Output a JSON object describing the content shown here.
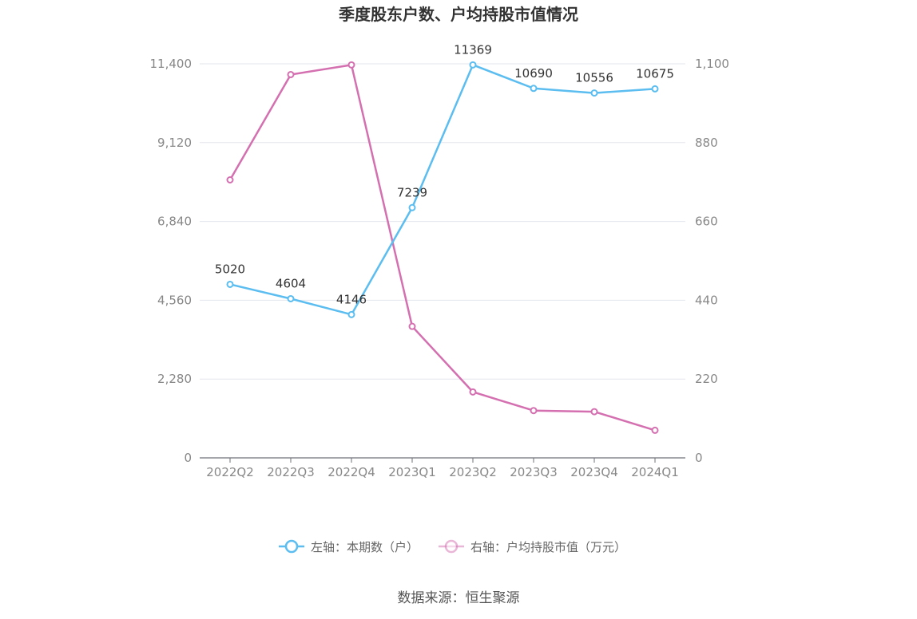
{
  "chart_data": {
    "type": "line",
    "title": "季度股东户数、户均持股市值情况",
    "categories": [
      "2022Q2",
      "2022Q3",
      "2022Q4",
      "2023Q1",
      "2023Q2",
      "2023Q3",
      "2023Q4",
      "2024Q1"
    ],
    "left_axis": {
      "ticks": [
        "0",
        "2,280",
        "4,560",
        "6,840",
        "9,120",
        "11,400"
      ],
      "ylim": [
        0,
        11400
      ]
    },
    "right_axis": {
      "ticks": [
        "0",
        "220",
        "440",
        "660",
        "880",
        "1,100"
      ],
      "ylim": [
        0,
        1100
      ]
    },
    "grid": true,
    "legend_position": "bottom",
    "series": [
      {
        "name": "左轴：本期数（户）",
        "axis": "left",
        "color": "#5bbdf0",
        "values": [
          5020,
          4604,
          4146,
          7239,
          11369,
          10690,
          10556,
          10675
        ],
        "labels": [
          "5020",
          "4604",
          "4146",
          "7239",
          "11369",
          "10690",
          "10556",
          "10675"
        ]
      },
      {
        "name": "右轴：户均持股市值（万元）",
        "axis": "right",
        "color": "#d46fb0",
        "values": [
          776,
          1070,
          1097,
          367,
          184,
          132,
          129,
          77
        ]
      }
    ],
    "source": "数据来源：恒生聚源"
  }
}
